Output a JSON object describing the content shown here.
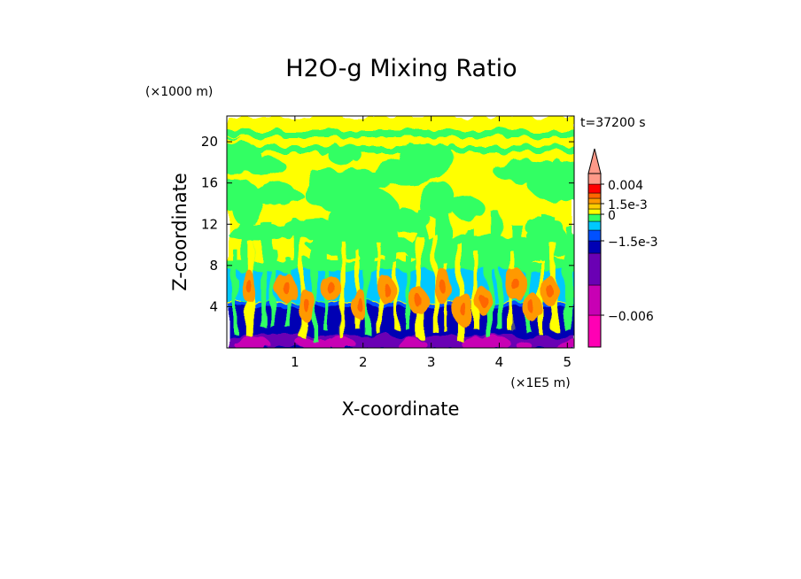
{
  "chart_data": {
    "type": "heatmap",
    "title": "H2O-g Mixing Ratio",
    "xlabel": "X-coordinate",
    "ylabel": "Z-coordinate",
    "x_units": "(×1E5 m)",
    "z_units": "(×1000 m)",
    "time_label": "t=37200 s",
    "xlim": [
      0,
      5.1
    ],
    "ylim": [
      0,
      22.5
    ],
    "x_ticks": [
      1,
      2,
      3,
      4,
      5
    ],
    "x_tick_labels": [
      "1",
      "2",
      "3",
      "4",
      "5"
    ],
    "y_ticks": [
      4,
      8,
      12,
      16,
      20
    ],
    "y_tick_labels": [
      "4",
      "8",
      "12",
      "16",
      "20"
    ],
    "colorbar": {
      "levels": [
        {
          "color": "#ff00b4"
        },
        {
          "color": "#c800b4"
        },
        {
          "color": "#6a00b4"
        },
        {
          "color": "#0000b4"
        },
        {
          "color": "#0050ff"
        },
        {
          "color": "#00c8ff"
        },
        {
          "color": "#32ff64"
        },
        {
          "color": "#ffff00"
        },
        {
          "color": "#ffcc00"
        },
        {
          "color": "#ff9900"
        },
        {
          "color": "#ff6600"
        },
        {
          "color": "#ff0000"
        },
        {
          "color": "#ff9988"
        }
      ],
      "labels": [
        "0.004",
        "1.5e-3",
        "0",
        "−1.5e-3",
        "−0.006"
      ],
      "label_values": [
        0.004,
        0.0015,
        0,
        -0.0015,
        -0.006
      ]
    }
  }
}
